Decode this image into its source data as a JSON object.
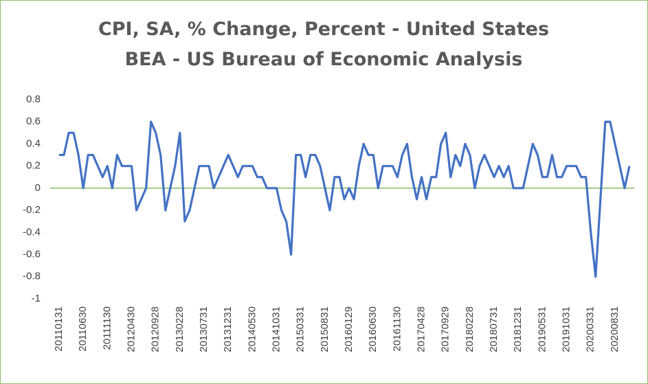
{
  "chart_data": {
    "type": "line",
    "title": "CPI, SA, % Change, Percent - United States BEA - US Bureau of Economic Analysis",
    "categories": [
      "20110131",
      null,
      null,
      null,
      null,
      "20110630",
      null,
      null,
      null,
      null,
      "20111130",
      null,
      null,
      null,
      null,
      "20120430",
      null,
      null,
      null,
      null,
      "20120928",
      null,
      null,
      null,
      null,
      "20130228",
      null,
      null,
      null,
      null,
      "20130731",
      null,
      null,
      null,
      null,
      "20131231",
      null,
      null,
      null,
      null,
      "20140530",
      null,
      null,
      null,
      null,
      "20141031",
      null,
      null,
      null,
      null,
      "20150331",
      null,
      null,
      null,
      null,
      "20150831",
      null,
      null,
      null,
      null,
      "20160129",
      null,
      null,
      null,
      null,
      "20160630",
      null,
      null,
      null,
      null,
      "20161130",
      null,
      null,
      null,
      null,
      "20170428",
      null,
      null,
      null,
      null,
      "20170929",
      null,
      null,
      null,
      null,
      "20180228",
      null,
      null,
      null,
      null,
      "20180731",
      null,
      null,
      null,
      null,
      "20181231",
      null,
      null,
      null,
      null,
      "20190531",
      null,
      null,
      null,
      null,
      "20191031",
      null,
      null,
      null,
      null,
      "20200331",
      null,
      null,
      null,
      null,
      "20200831",
      null,
      null,
      null
    ],
    "series": [
      {
        "color": "#4472c4",
        "values": [
          0.3,
          0.3,
          0.5,
          0.5,
          0.3,
          0,
          0.3,
          0.3,
          0.2,
          0.1,
          0.2,
          0,
          0.3,
          0.2,
          0.2,
          0.2,
          -0.2,
          -0.1,
          0,
          0.6,
          0.5,
          0.3,
          -0.2,
          0,
          0.2,
          0.5,
          -0.3,
          -0.2,
          0,
          0.2,
          0.2,
          0.2,
          0,
          0.1,
          0.2,
          0.3,
          0.2,
          0.1,
          0.2,
          0.2,
          0.2,
          0.1,
          0.1,
          0,
          0,
          0,
          -0.2,
          -0.3,
          -0.6,
          0.3,
          0.3,
          0.1,
          0.3,
          0.3,
          0.2,
          0,
          -0.2,
          0.1,
          0.1,
          -0.1,
          0,
          -0.1,
          0.2,
          0.4,
          0.3,
          0.3,
          0,
          0.2,
          0.2,
          0.2,
          0.1,
          0.3,
          0.4,
          0.1,
          -0.1,
          0.1,
          -0.1,
          0.1,
          0.1,
          0.4,
          0.5,
          0.1,
          0.3,
          0.2,
          0.4,
          0.3,
          0,
          0.2,
          0.3,
          0.2,
          0.1,
          0.2,
          0.1,
          0.2,
          0,
          0,
          0,
          0.2,
          0.4,
          0.3,
          0.1,
          0.1,
          0.3,
          0.1,
          0.1,
          0.2,
          0.2,
          0.2,
          0.1,
          0.1,
          -0.4,
          -0.8,
          -0.1,
          0.6,
          0.6,
          0.4,
          0.2,
          0,
          0.2
        ]
      }
    ],
    "ylim": [
      -1,
      0.8
    ],
    "yticks": [
      0.8,
      0.6,
      0.4,
      0.2,
      0,
      -0.2,
      -0.4,
      -0.6,
      -0.8,
      -1
    ],
    "grid": false,
    "zero_line_color": "#70ad47"
  }
}
